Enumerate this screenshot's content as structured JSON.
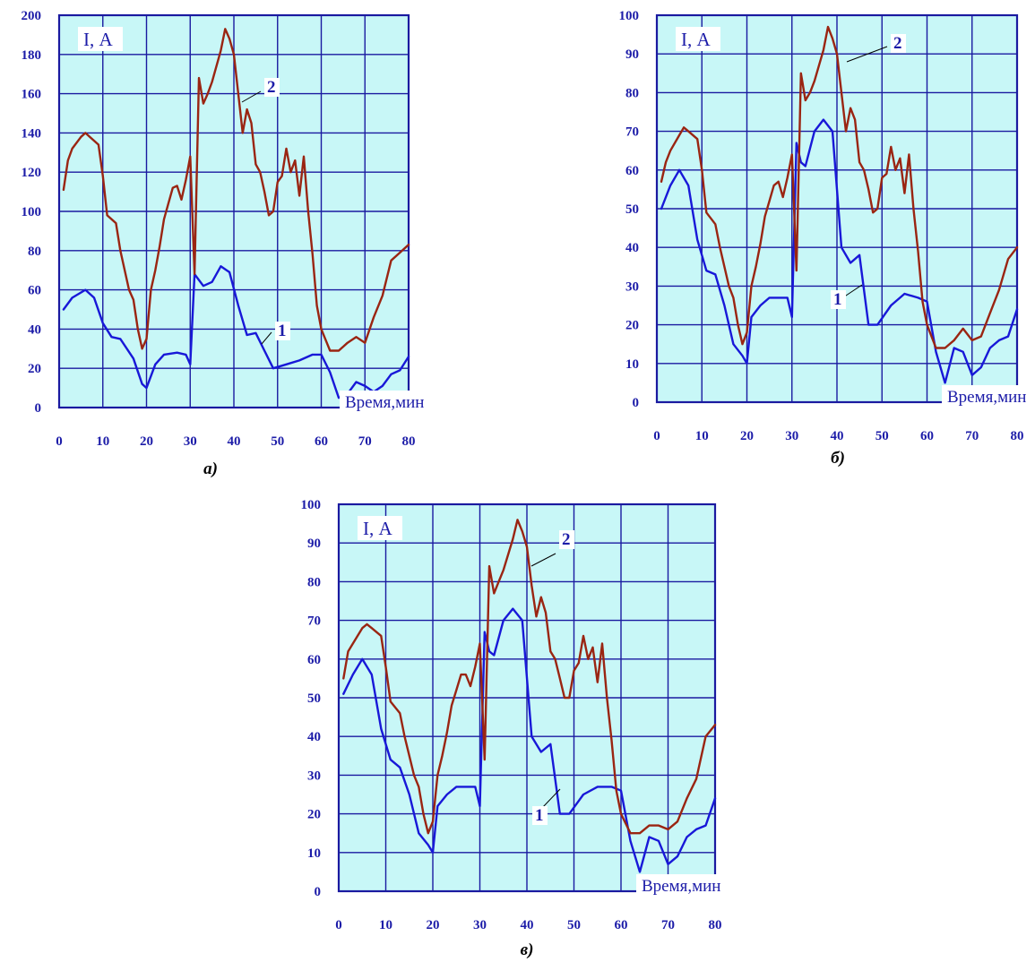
{
  "colors": {
    "plot_bg": "#c8f7f7",
    "grid": "#1a1aa0",
    "series1": "#1818d8",
    "series2": "#9a2512",
    "text": "#1c1ca8"
  },
  "chart_data": [
    {
      "type": "line",
      "caption": "а)",
      "ylabel": "I, А",
      "xlabel": "Время,мин",
      "xlim": [
        0,
        80
      ],
      "ylim": [
        0,
        200
      ],
      "x_ticks": [
        0,
        10,
        20,
        30,
        40,
        50,
        60,
        70,
        80
      ],
      "y_ticks": [
        0,
        20,
        40,
        60,
        80,
        100,
        120,
        140,
        160,
        180,
        200
      ],
      "grid": true,
      "series": [
        {
          "name": "1",
          "x": [
            1,
            3,
            6,
            8,
            10,
            12,
            14,
            17,
            19,
            20,
            22,
            24,
            27,
            29,
            30,
            31,
            33,
            35,
            37,
            39,
            41,
            43,
            45,
            47,
            49,
            52,
            55,
            58,
            60,
            62,
            64,
            66,
            68,
            70,
            72,
            74,
            76,
            78,
            80
          ],
          "y": [
            50,
            56,
            60,
            56,
            43,
            36,
            35,
            25,
            12,
            10,
            22,
            27,
            28,
            27,
            22,
            68,
            62,
            64,
            72,
            69,
            52,
            37,
            38,
            29,
            20,
            22,
            24,
            27,
            27,
            18,
            5,
            7,
            13,
            11,
            8,
            11,
            17,
            19,
            26
          ]
        },
        {
          "name": "2",
          "x": [
            1,
            2,
            3,
            5,
            6,
            7,
            9,
            10,
            11,
            13,
            14,
            16,
            17,
            18,
            19,
            20,
            21,
            22,
            23,
            24,
            25,
            26,
            27,
            28,
            29,
            30,
            31,
            32,
            33,
            34,
            35,
            37,
            38,
            39,
            40,
            41,
            42,
            43,
            44,
            45,
            46,
            47,
            48,
            49,
            50,
            51,
            52,
            53,
            54,
            55,
            56,
            57,
            58,
            59,
            60,
            62,
            64,
            66,
            68,
            70,
            72,
            74,
            76,
            78,
            80
          ],
          "y": [
            111,
            126,
            132,
            138,
            140,
            138,
            134,
            118,
            98,
            94,
            80,
            60,
            55,
            40,
            30,
            35,
            60,
            70,
            82,
            96,
            104,
            112,
            113,
            106,
            116,
            128,
            68,
            168,
            155,
            160,
            166,
            182,
            193,
            188,
            180,
            160,
            140,
            152,
            145,
            124,
            120,
            110,
            98,
            100,
            115,
            118,
            132,
            120,
            126,
            108,
            128,
            100,
            78,
            52,
            40,
            29,
            29,
            33,
            36,
            33,
            46,
            57,
            75,
            79,
            83
          ]
        }
      ]
    },
    {
      "type": "line",
      "caption": "б)",
      "ylabel": "I, А",
      "xlabel": "Время,мин",
      "xlim": [
        0,
        80
      ],
      "ylim": [
        0,
        100
      ],
      "x_ticks": [
        0,
        10,
        20,
        30,
        40,
        50,
        60,
        70,
        80
      ],
      "y_ticks": [
        0,
        10,
        20,
        30,
        40,
        50,
        60,
        70,
        80,
        90,
        100
      ],
      "grid": true,
      "series": [
        {
          "name": "1",
          "x": [
            1,
            3,
            5,
            7,
            9,
            11,
            13,
            15,
            17,
            19,
            20,
            21,
            23,
            25,
            27,
            29,
            30,
            31,
            32,
            33,
            35,
            37,
            39,
            41,
            43,
            45,
            47,
            49,
            52,
            55,
            58,
            60,
            62,
            64,
            66,
            68,
            70,
            72,
            74,
            76,
            78,
            80
          ],
          "y": [
            50,
            56,
            60,
            56,
            42,
            34,
            33,
            25,
            15,
            12,
            10,
            22,
            25,
            27,
            27,
            27,
            22,
            67,
            62,
            61,
            70,
            73,
            70,
            40,
            36,
            38,
            20,
            20,
            25,
            28,
            27,
            26,
            13,
            5,
            14,
            13,
            7,
            9,
            14,
            16,
            17,
            24
          ]
        },
        {
          "name": "2",
          "x": [
            1,
            2,
            3,
            5,
            6,
            7,
            9,
            10,
            11,
            13,
            14,
            16,
            17,
            18,
            19,
            20,
            21,
            22,
            23,
            24,
            25,
            26,
            27,
            28,
            29,
            30,
            31,
            32,
            33,
            34,
            35,
            37,
            38,
            39,
            40,
            41,
            42,
            43,
            44,
            45,
            46,
            47,
            48,
            49,
            50,
            51,
            52,
            53,
            54,
            55,
            56,
            57,
            58,
            59,
            60,
            62,
            64,
            66,
            68,
            70,
            72,
            74,
            76,
            78,
            80
          ],
          "y": [
            57,
            62,
            65,
            69,
            71,
            70,
            68,
            60,
            49,
            46,
            40,
            30,
            27,
            20,
            15,
            18,
            30,
            35,
            41,
            48,
            52,
            56,
            57,
            53,
            58,
            64,
            34,
            85,
            78,
            80,
            83,
            91,
            97,
            94,
            90,
            80,
            70,
            76,
            73,
            62,
            60,
            55,
            49,
            50,
            58,
            59,
            66,
            60,
            63,
            54,
            64,
            50,
            39,
            26,
            20,
            14,
            14,
            16,
            19,
            16,
            17,
            23,
            29,
            37,
            40
          ]
        }
      ]
    },
    {
      "type": "line",
      "caption": "в)",
      "ylabel": "I, А",
      "xlabel": "Время,мин",
      "xlim": [
        0,
        80
      ],
      "ylim": [
        0,
        100
      ],
      "x_ticks": [
        0,
        10,
        20,
        30,
        40,
        50,
        60,
        70,
        80
      ],
      "y_ticks": [
        0,
        10,
        20,
        30,
        40,
        50,
        60,
        70,
        80,
        90,
        100
      ],
      "grid": true,
      "series": [
        {
          "name": "1",
          "x": [
            1,
            3,
            5,
            7,
            9,
            11,
            13,
            15,
            17,
            19,
            20,
            21,
            23,
            25,
            27,
            29,
            30,
            31,
            32,
            33,
            35,
            37,
            39,
            41,
            43,
            45,
            47,
            49,
            52,
            55,
            58,
            60,
            62,
            64,
            66,
            68,
            70,
            72,
            74,
            76,
            78,
            80
          ],
          "y": [
            51,
            56,
            60,
            56,
            42,
            34,
            32,
            25,
            15,
            12,
            10,
            22,
            25,
            27,
            27,
            27,
            22,
            67,
            62,
            61,
            70,
            73,
            70,
            40,
            36,
            38,
            20,
            20,
            25,
            27,
            27,
            26,
            13,
            5,
            14,
            13,
            7,
            9,
            14,
            16,
            17,
            24
          ]
        },
        {
          "name": "2",
          "x": [
            1,
            2,
            3,
            5,
            6,
            7,
            9,
            10,
            11,
            13,
            14,
            16,
            17,
            18,
            19,
            20,
            21,
            22,
            23,
            24,
            25,
            26,
            27,
            28,
            29,
            30,
            31,
            32,
            33,
            34,
            35,
            37,
            38,
            39,
            40,
            41,
            42,
            43,
            44,
            45,
            46,
            47,
            48,
            49,
            50,
            51,
            52,
            53,
            54,
            55,
            56,
            57,
            58,
            59,
            60,
            62,
            64,
            66,
            68,
            70,
            72,
            74,
            76,
            78,
            80
          ],
          "y": [
            55,
            62,
            64,
            68,
            69,
            68,
            66,
            58,
            49,
            46,
            40,
            30,
            27,
            20,
            15,
            18,
            30,
            35,
            41,
            48,
            52,
            56,
            56,
            53,
            58,
            64,
            34,
            84,
            77,
            80,
            83,
            91,
            96,
            93,
            89,
            79,
            71,
            76,
            72,
            62,
            60,
            55,
            50,
            50,
            57,
            59,
            66,
            60,
            63,
            54,
            64,
            50,
            39,
            26,
            20,
            15,
            15,
            17,
            17,
            16,
            18,
            24,
            29,
            40,
            43
          ]
        }
      ]
    }
  ]
}
